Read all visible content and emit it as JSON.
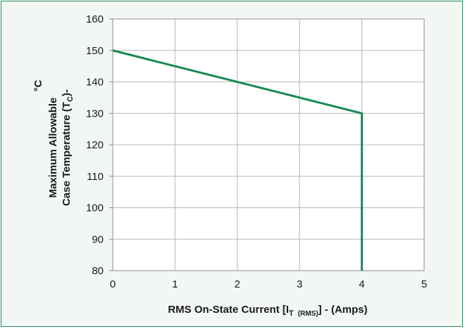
{
  "chart_data": {
    "type": "line",
    "xlabel": "RMS On-State  Current [I",
    "xlabel_sub_T": "T",
    "xlabel_sub_rms": "(RMS)",
    "xlabel_tail": "] - (Amps)",
    "ylabel_line1": "Maximum Allowable",
    "ylabel_line2": "Case Temperature (T",
    "ylabel_line2_sub": "C",
    "ylabel_line2_tail": ")-",
    "ylabel_unit": "°C",
    "xlim": [
      0,
      5
    ],
    "ylim": [
      80,
      160
    ],
    "xticks": [
      "0",
      "1",
      "2",
      "3",
      "4",
      "5"
    ],
    "yticks": [
      "80",
      "90",
      "100",
      "110",
      "120",
      "130",
      "140",
      "150",
      "160"
    ],
    "grid": true,
    "series": [
      {
        "color": "#1a8a52",
        "x": [
          0,
          4,
          4
        ],
        "y": [
          150,
          130,
          80
        ]
      }
    ]
  }
}
